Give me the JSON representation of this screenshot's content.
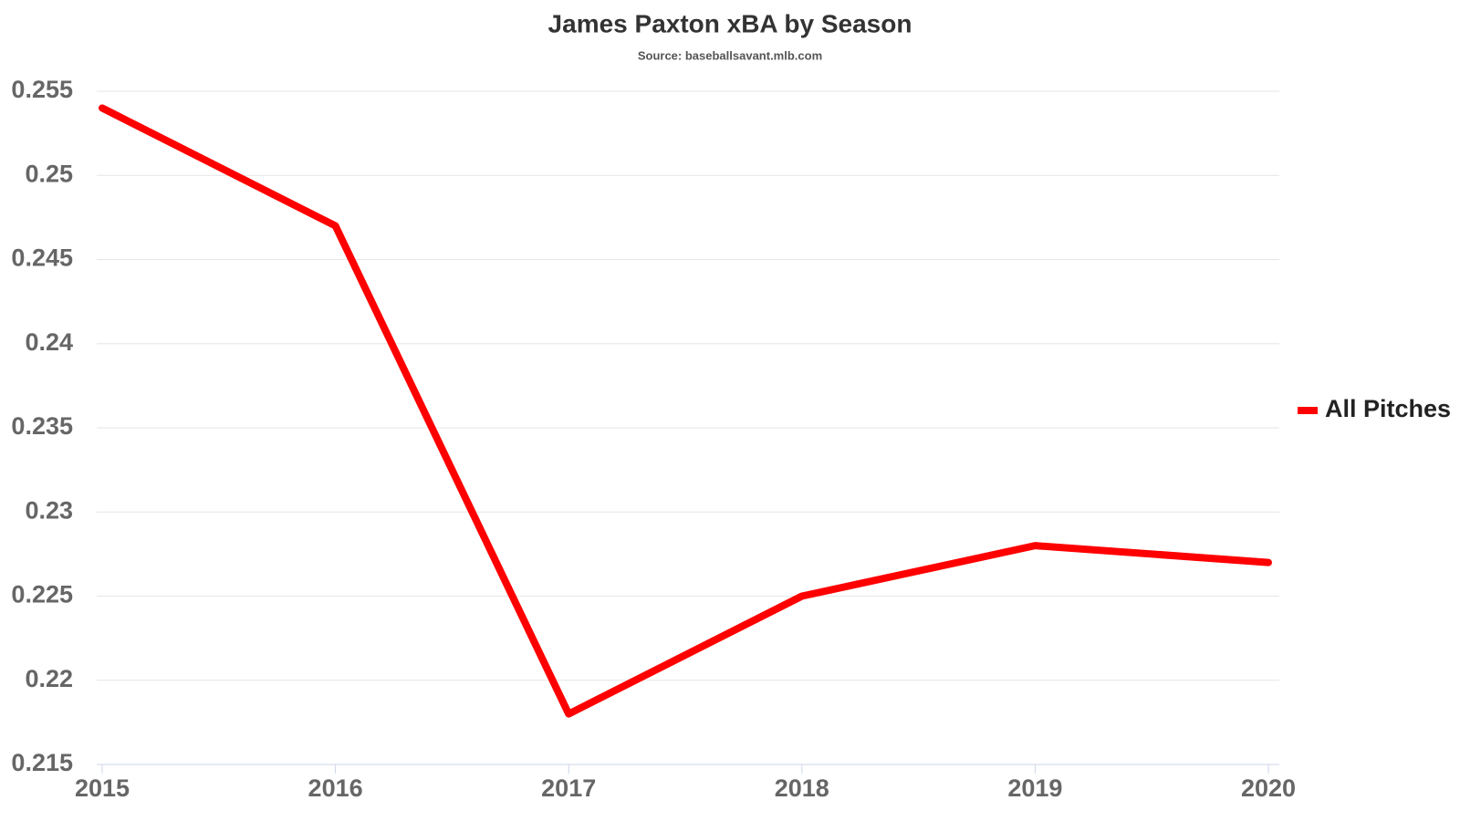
{
  "chart_data": {
    "type": "line",
    "title": "James Paxton xBA by Season",
    "subtitle": "Source: baseballsavant.mlb.com",
    "x": [
      2015,
      2016,
      2017,
      2018,
      2019,
      2020
    ],
    "xlim": [
      2015,
      2020
    ],
    "xticks": [
      2015,
      2016,
      2017,
      2018,
      2019,
      2020
    ],
    "ylim": [
      0.215,
      0.255
    ],
    "yticks": [
      0.215,
      0.22,
      0.225,
      0.23,
      0.235,
      0.24,
      0.245,
      0.25,
      0.255
    ],
    "grid": true,
    "legend": "right",
    "series": [
      {
        "name": "All Pitches",
        "color": "#ff0000",
        "values": [
          0.254,
          0.247,
          0.218,
          0.225,
          0.228,
          0.227
        ]
      }
    ]
  }
}
